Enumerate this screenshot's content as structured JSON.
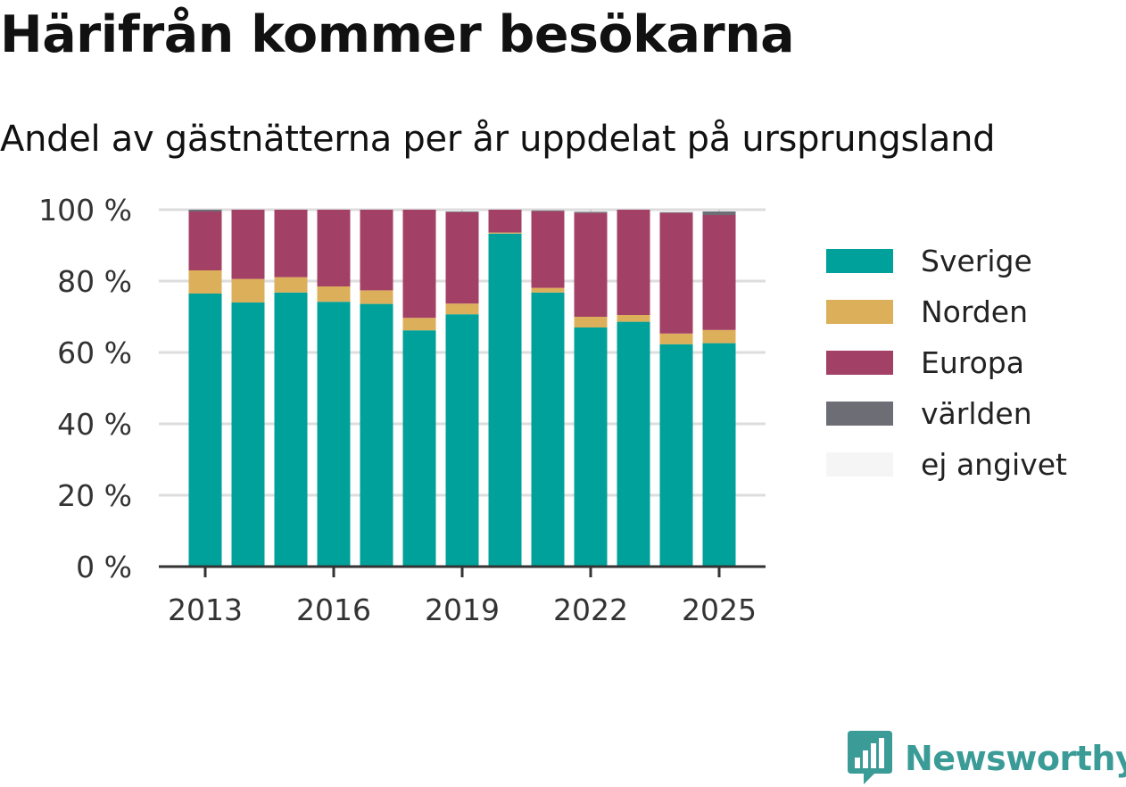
{
  "chart_data": {
    "type": "bar",
    "stacked": true,
    "title": "Härifrån kommer besökarna",
    "subtitle": "Andel av gästnätterna per år uppdelat på ursprungsland",
    "categories": [
      "2013",
      "2014",
      "2015",
      "2016",
      "2017",
      "2018",
      "2019",
      "2020",
      "2021",
      "2022",
      "2023",
      "2024",
      "2025"
    ],
    "x_tick_labels": [
      "2013",
      "2016",
      "2019",
      "2022",
      "2025"
    ],
    "y_tick_labels": [
      "0 %",
      "20 %",
      "40 %",
      "60 %",
      "80 %",
      "100 %"
    ],
    "ylim": [
      0,
      100
    ],
    "grid": true,
    "legend_position": "right",
    "series": [
      {
        "name": "Sverige",
        "color": "#00a19a",
        "values": [
          76.5,
          74.0,
          76.8,
          74.2,
          73.6,
          66.2,
          70.7,
          93.3,
          76.8,
          67.0,
          68.6,
          62.3,
          62.6
        ]
      },
      {
        "name": "Norden",
        "color": "#dcaf5a",
        "values": [
          6.5,
          6.6,
          4.3,
          4.3,
          3.8,
          3.5,
          3.0,
          0.3,
          1.3,
          3.0,
          1.9,
          3.0,
          3.7
        ]
      },
      {
        "name": "Europa",
        "color": "#a34066",
        "values": [
          16.5,
          19.4,
          18.9,
          21.5,
          22.6,
          30.3,
          25.6,
          6.4,
          21.5,
          29.1,
          29.5,
          33.8,
          32.2
        ]
      },
      {
        "name": "världen",
        "color": "#6d6d75",
        "values": [
          0.5,
          0.0,
          0.0,
          0.0,
          0.0,
          0.0,
          0.2,
          0.0,
          0.2,
          0.3,
          0.0,
          0.2,
          1.0
        ]
      },
      {
        "name": "ej angivet",
        "color": "#f5f5f5",
        "values": [
          0,
          0,
          0,
          0,
          0,
          0,
          0,
          0,
          0,
          0,
          0,
          0,
          0
        ]
      }
    ]
  },
  "brand": {
    "name": "Newsworthy",
    "color": "#3a9b97"
  }
}
